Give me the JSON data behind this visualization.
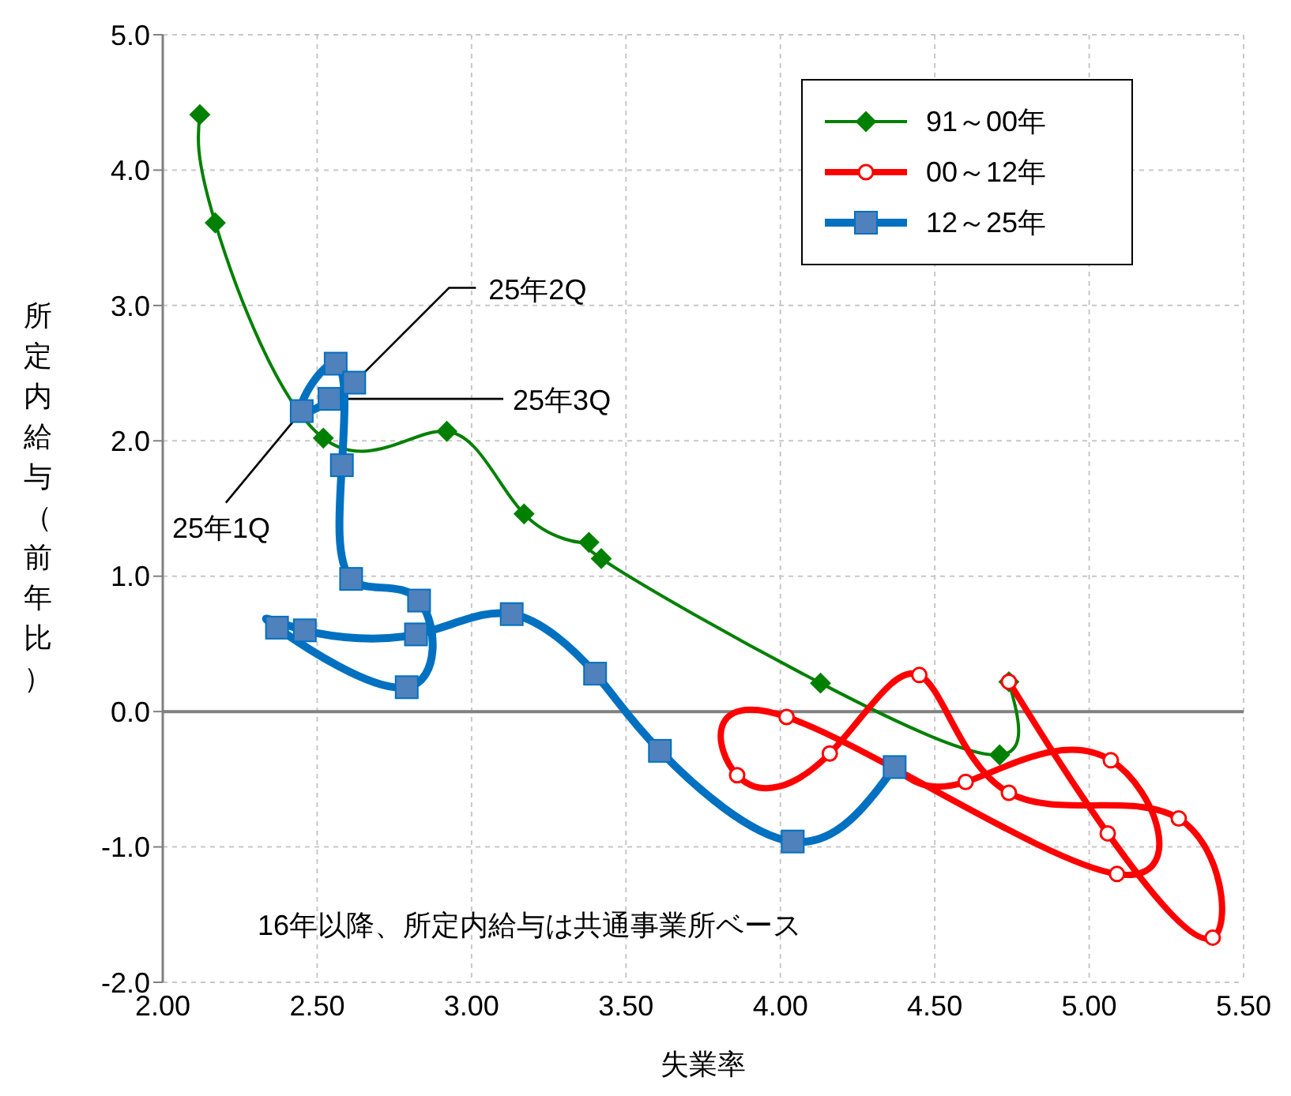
{
  "chart_data": {
    "type": "line",
    "xlabel": "失業率",
    "ylabel": "所定内給与（前年比）",
    "xlim": [
      2.0,
      5.5
    ],
    "xticks": [
      {
        "value": 2,
        "label": "2.00"
      },
      {
        "value": 2.5,
        "label": "2.50"
      },
      {
        "value": 3,
        "label": "3.00"
      },
      {
        "value": 3.5,
        "label": "3.50"
      },
      {
        "value": 4,
        "label": "4.00"
      },
      {
        "value": 4.5,
        "label": "4.50"
      },
      {
        "value": 5,
        "label": "5.00"
      },
      {
        "value": 5.5,
        "label": "5.50"
      }
    ],
    "ylim": [
      -2.0,
      5.0
    ],
    "yticks": [
      {
        "value": -2,
        "label": "-2.0"
      },
      {
        "value": -1,
        "label": "-1.0"
      },
      {
        "value": 0,
        "label": "0.0"
      },
      {
        "value": 1,
        "label": "1.0"
      },
      {
        "value": 2,
        "label": "2.0"
      },
      {
        "value": 3,
        "label": "3.0"
      },
      {
        "value": 4,
        "label": "4.0"
      },
      {
        "value": 5,
        "label": "5.0"
      }
    ],
    "grid": true,
    "legend": "top right",
    "ref_lines": [
      {
        "axis": "y",
        "value": 0,
        "color": "#808080"
      }
    ],
    "series": [
      {
        "name": "91～00年",
        "color": "#008000",
        "marker": "diamond",
        "x": [
          2.12,
          2.17,
          2.52,
          2.92,
          3.17,
          3.38,
          3.42,
          4.13,
          4.71,
          4.74
        ],
        "values": [
          4.41,
          3.61,
          2.02,
          2.07,
          1.46,
          1.25,
          1.13,
          0.21,
          -0.32,
          0.22
        ]
      },
      {
        "name": "00～12年",
        "color": "#ff0000",
        "marker": "circle",
        "x": [
          4.74,
          5.06,
          5.4,
          5.29,
          4.74,
          4.45,
          4.16,
          3.86,
          4.02,
          5.09,
          5.07,
          4.6,
          4.37
        ],
        "values": [
          0.22,
          -0.9,
          -1.67,
          -0.79,
          -0.6,
          0.27,
          -0.31,
          -0.47,
          -0.04,
          -1.2,
          -0.36,
          -0.52,
          -0.41
        ]
      },
      {
        "name": "12～25年",
        "color": "#0070c0",
        "marker": "square",
        "x": [
          4.37,
          4.04,
          3.61,
          3.4,
          3.13,
          2.82,
          2.46,
          2.37,
          2.79,
          2.83,
          2.61,
          2.58,
          2.56,
          2.45,
          2.62,
          2.54
        ],
        "values": [
          -0.41,
          -0.96,
          -0.29,
          0.28,
          0.72,
          0.57,
          0.6,
          0.62,
          0.18,
          0.82,
          0.98,
          1.82,
          2.57,
          2.22,
          2.43,
          2.31
        ]
      }
    ],
    "annotations": [
      {
        "text": "25年2Q",
        "x": 2.62,
        "y": 2.43
      },
      {
        "text": "25年3Q",
        "x": 2.54,
        "y": 2.31
      },
      {
        "text": "25年1Q",
        "x": 2.45,
        "y": 2.22
      },
      "16年以降、所定内給与は共通事業所ベース"
    ]
  }
}
